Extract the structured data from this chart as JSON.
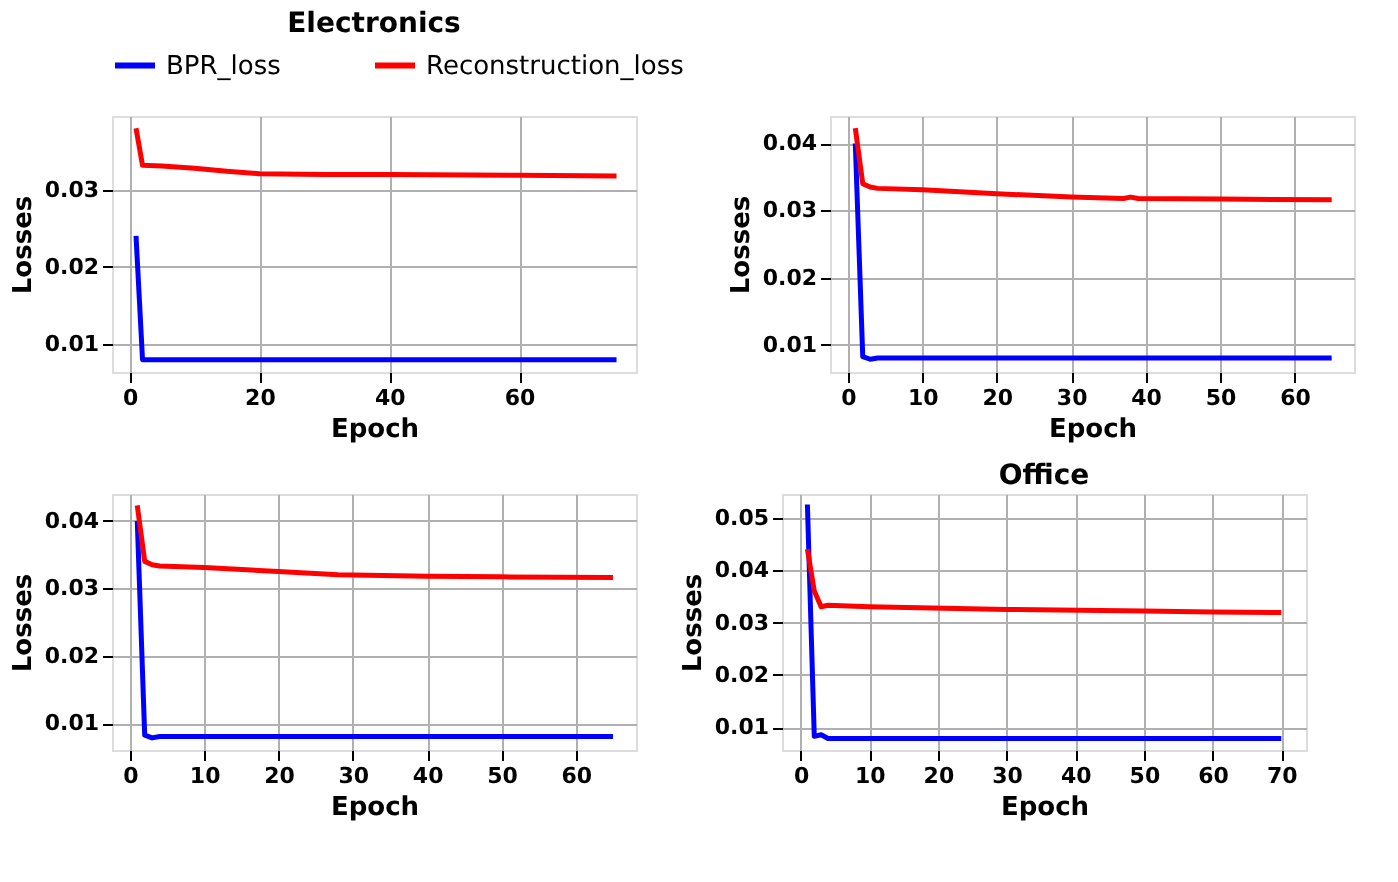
{
  "chart_data": [
    {
      "type": "line",
      "title": "Electronics",
      "xlabel": "Epoch",
      "ylabel": "Losses",
      "legend": "top",
      "grid": true,
      "line_style": "solid",
      "xlim": [
        -2.7,
        78.0
      ],
      "xticks": [
        0,
        20,
        40,
        60
      ],
      "ylim": [
        0.0063,
        0.0396
      ],
      "yticks": [
        0.01,
        0.02,
        0.03
      ],
      "series": [
        {
          "name": "BPR_loss",
          "color": "#0000ff",
          "x": [
            1,
            2,
            3,
            10,
            20,
            40,
            60,
            75
          ],
          "values": [
            0.024,
            0.0079,
            0.0079,
            0.0079,
            0.0079,
            0.0079,
            0.0079,
            0.0079
          ]
        },
        {
          "name": "Reconstruction_loss",
          "color": "#ff0000",
          "x": [
            1,
            2,
            5,
            10,
            15,
            20,
            30,
            40,
            60,
            75
          ],
          "values": [
            0.038,
            0.0332,
            0.0331,
            0.0328,
            0.0324,
            0.0321,
            0.032,
            0.032,
            0.0319,
            0.0318
          ]
        }
      ]
    },
    {
      "type": "line",
      "xlabel": "Epoch",
      "ylabel": "Losses",
      "grid": true,
      "line_style": "solid",
      "xlim": [
        -2.4,
        68.0
      ],
      "xticks": [
        0,
        10,
        20,
        30,
        40,
        50,
        60
      ],
      "ylim": [
        0.0059,
        0.0441
      ],
      "yticks": [
        0.01,
        0.02,
        0.03,
        0.04
      ],
      "series": [
        {
          "color": "#0000ff",
          "x": [
            1,
            2,
            3,
            4,
            10,
            30,
            50,
            65
          ],
          "values": [
            0.04,
            0.0082,
            0.0078,
            0.008,
            0.008,
            0.008,
            0.008,
            0.008
          ]
        },
        {
          "color": "#ff0000",
          "x": [
            1,
            2,
            3,
            4,
            10,
            20,
            30,
            37,
            38,
            39,
            50,
            65
          ],
          "values": [
            0.0423,
            0.034,
            0.0335,
            0.0333,
            0.0331,
            0.0325,
            0.032,
            0.0318,
            0.032,
            0.0318,
            0.0317,
            0.0316
          ]
        }
      ]
    },
    {
      "type": "line",
      "xlabel": "Epoch",
      "ylabel": "Losses",
      "grid": true,
      "line_style": "solid",
      "xlim": [
        -2.4,
        68.1
      ],
      "xticks": [
        0,
        10,
        20,
        30,
        40,
        50,
        60
      ],
      "ylim": [
        0.006,
        0.044
      ],
      "yticks": [
        0.01,
        0.02,
        0.03,
        0.04
      ],
      "series": [
        {
          "color": "#0000ff",
          "x": [
            1,
            2,
            3,
            4,
            10,
            30,
            50,
            65
          ],
          "values": [
            0.04,
            0.0082,
            0.0078,
            0.008,
            0.008,
            0.008,
            0.008,
            0.008
          ]
        },
        {
          "color": "#ff0000",
          "x": [
            1,
            2,
            3,
            4,
            10,
            20,
            28,
            40,
            50,
            65
          ],
          "values": [
            0.0423,
            0.034,
            0.0335,
            0.0333,
            0.0331,
            0.0325,
            0.032,
            0.0318,
            0.0317,
            0.0316
          ]
        }
      ]
    },
    {
      "type": "line",
      "title": "Office",
      "xlabel": "Epoch",
      "ylabel": "Losses",
      "grid": true,
      "line_style": "solid",
      "xlim": [
        -2.7,
        73.6
      ],
      "xticks": [
        0,
        10,
        20,
        30,
        40,
        50,
        60,
        70
      ],
      "ylim": [
        0.0057,
        0.0545
      ],
      "yticks": [
        0.01,
        0.02,
        0.03,
        0.04,
        0.05
      ],
      "series": [
        {
          "color": "#0000ff",
          "x": [
            1,
            2,
            3,
            4,
            10,
            30,
            50,
            70
          ],
          "values": [
            0.0525,
            0.0083,
            0.0086,
            0.0079,
            0.0079,
            0.0079,
            0.0079,
            0.0079
          ]
        },
        {
          "color": "#ff0000",
          "x": [
            1,
            2,
            3,
            4,
            10,
            30,
            50,
            60,
            70
          ],
          "values": [
            0.044,
            0.036,
            0.033,
            0.0333,
            0.033,
            0.0325,
            0.0322,
            0.032,
            0.0319
          ]
        }
      ]
    }
  ]
}
